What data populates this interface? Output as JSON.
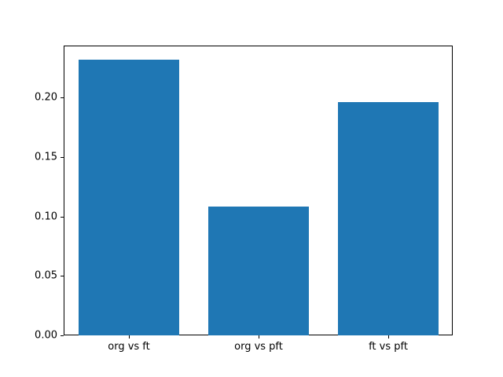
{
  "chart_data": {
    "type": "bar",
    "categories": [
      "org vs ft",
      "org vs pft",
      "ft vs pft"
    ],
    "values": [
      0.232,
      0.108,
      0.196
    ],
    "title": "",
    "xlabel": "",
    "ylabel": "",
    "ylim": [
      0,
      0.2436
    ],
    "yticks": [
      0.0,
      0.05,
      0.1,
      0.15,
      0.2
    ],
    "ytick_labels": [
      "0.00",
      "0.05",
      "0.10",
      "0.15",
      "0.20"
    ],
    "bar_color": "#1f77b4",
    "frame_color": "#000000",
    "background_color": "#ffffff",
    "grid": false,
    "legend": false
  }
}
